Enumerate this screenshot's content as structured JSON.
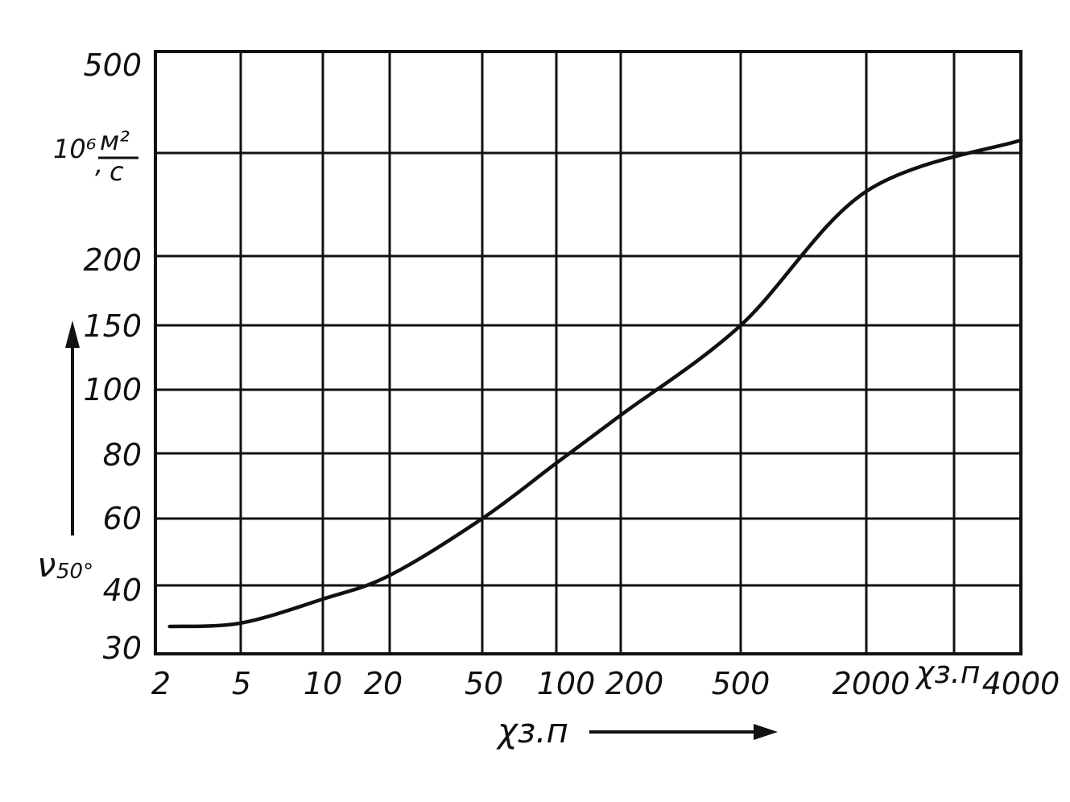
{
  "chart_data": {
    "type": "line",
    "x_axis": {
      "scale": "nonuniform",
      "tick_labels": [
        "2",
        "5",
        "10",
        "20",
        "50",
        "100",
        "200",
        "500",
        "2000",
        "4000"
      ],
      "extra_label": "χз.п",
      "label": "χз.п"
    },
    "y_axis": {
      "scale": "nonuniform",
      "tick_labels": [
        "30",
        "40",
        "60",
        "80",
        "100",
        "150",
        "200",
        "500"
      ],
      "label_symbol": "ν",
      "label_subscript": "50°",
      "unit_prefix": "10⁶",
      "unit_numerator": "м²",
      "unit_denominator": "с"
    },
    "grid": true,
    "series": [
      {
        "values": [
          {
            "x": 2.5,
            "y": 34
          },
          {
            "x": 5,
            "y": 34.5
          },
          {
            "x": 10,
            "y": 38
          },
          {
            "x": 20,
            "y": 43
          },
          {
            "x": 50,
            "y": 60
          },
          {
            "x": 100,
            "y": 77
          },
          {
            "x": 200,
            "y": 92
          },
          {
            "x": 500,
            "y": 150
          },
          {
            "x": 2000,
            "y": 295
          },
          {
            "x": 4000,
            "y": 370
          }
        ]
      }
    ]
  }
}
